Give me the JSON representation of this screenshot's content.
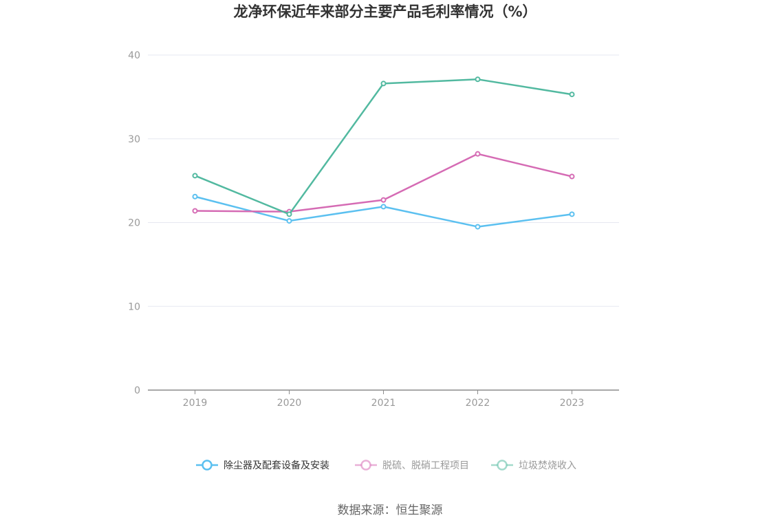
{
  "chart_data": {
    "type": "line",
    "title": "龙净环保近年来部分主要产品毛利率情况（%）",
    "xlabel": "",
    "ylabel": "",
    "categories": [
      "2019",
      "2020",
      "2021",
      "2022",
      "2023"
    ],
    "ylim": [
      0,
      40
    ],
    "yticks": [
      0,
      10,
      20,
      30,
      40
    ],
    "grid": true,
    "legend_position": "bottom",
    "series": [
      {
        "name": "除尘器及配套设备及安装",
        "color": "#5bc0f0",
        "values": [
          23.1,
          20.2,
          21.9,
          19.5,
          21.0
        ]
      },
      {
        "name": "脱硫、脱硝工程项目",
        "color": "#d56bb4",
        "values": [
          21.4,
          21.3,
          22.7,
          28.2,
          25.5
        ]
      },
      {
        "name": "垃圾焚烧收入",
        "color": "#52b9a0",
        "values": [
          25.6,
          21.0,
          36.6,
          37.1,
          35.3
        ]
      }
    ]
  },
  "source": "数据来源：恒生聚源"
}
